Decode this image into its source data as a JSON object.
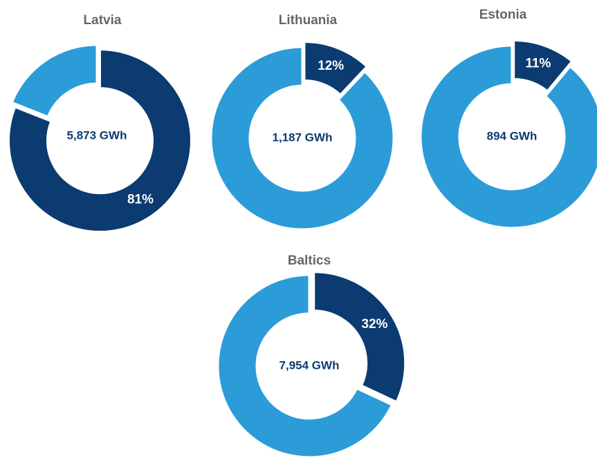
{
  "chart_data": [
    {
      "type": "pie",
      "title": "Latvia",
      "values": [
        81,
        19
      ],
      "value_labels": [
        "81%",
        null
      ],
      "colors": [
        "#0b3b70",
        "#2b9cd8"
      ],
      "center_label": "5,873 GWh"
    },
    {
      "type": "pie",
      "title": "Lithuania",
      "values": [
        12,
        88
      ],
      "value_labels": [
        "12%",
        null
      ],
      "colors": [
        "#0b3b70",
        "#2b9cd8"
      ],
      "center_label": "1,187 GWh"
    },
    {
      "type": "pie",
      "title": "Estonia",
      "values": [
        11,
        89
      ],
      "value_labels": [
        "11%",
        null
      ],
      "colors": [
        "#0b3b70",
        "#2b9cd8"
      ],
      "center_label": "894 GWh"
    },
    {
      "type": "pie",
      "title": "Baltics",
      "values": [
        32,
        68
      ],
      "value_labels": [
        "32%",
        null
      ],
      "colors": [
        "#0b3b70",
        "#2b9cd8"
      ],
      "center_label": "7,954 GWh"
    }
  ]
}
